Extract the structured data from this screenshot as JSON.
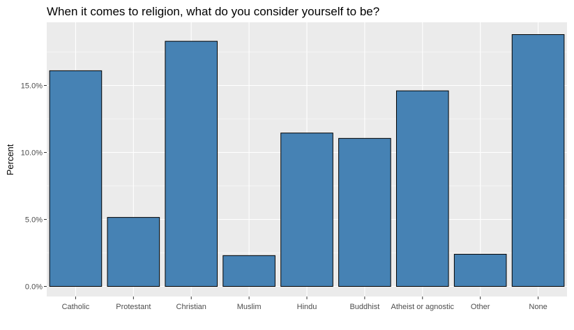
{
  "chart_data": {
    "type": "bar",
    "title": "When it comes to religion, what do you consider yourself to be?",
    "xlabel": "",
    "ylabel": "Percent",
    "categories": [
      "Catholic",
      "Protestant",
      "Christian",
      "Muslim",
      "Hindu",
      "Buddhist",
      "Atheist or agnostic",
      "Other",
      "None"
    ],
    "values": [
      16.1,
      5.15,
      18.3,
      2.3,
      11.45,
      11.05,
      14.6,
      2.4,
      18.8
    ],
    "ylim": [
      0,
      20
    ],
    "yticks": [
      0,
      5,
      10,
      15
    ],
    "ytick_labels": [
      "0.0%",
      "5.0%",
      "10.0%",
      "15.0%"
    ],
    "grid": true,
    "colors": {
      "bar_fill": "#4682b4",
      "bar_stroke": "#000000",
      "panel": "#ebebeb",
      "grid": "#ffffff"
    }
  }
}
